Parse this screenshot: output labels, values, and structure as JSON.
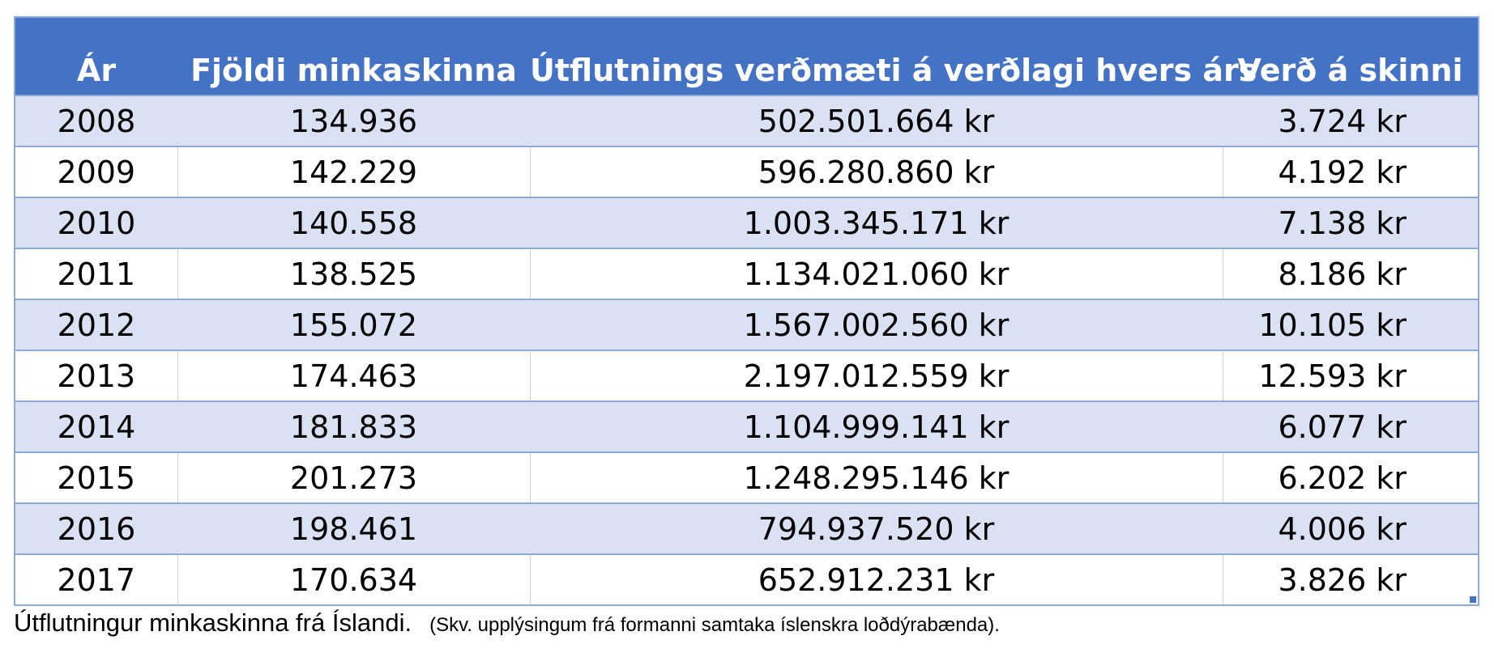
{
  "chart_data": {
    "type": "table",
    "columns": [
      "Ár",
      "Fjöldi minkaskinna",
      "Útflutnings verðmæti á verðlagi hvers árs",
      "Verð á skinni"
    ],
    "rows": [
      [
        "2008",
        "134.936",
        "502.501.664 kr",
        "3.724 kr"
      ],
      [
        "2009",
        "142.229",
        "596.280.860 kr",
        "4.192 kr"
      ],
      [
        "2010",
        "140.558",
        "1.003.345.171 kr",
        "7.138 kr"
      ],
      [
        "2011",
        "138.525",
        "1.134.021.060 kr",
        "8.186 kr"
      ],
      [
        "2012",
        "155.072",
        "1.567.002.560 kr",
        "10.105 kr"
      ],
      [
        "2013",
        "174.463",
        "2.197.012.559 kr",
        "12.593 kr"
      ],
      [
        "2014",
        "181.833",
        "1.104.999.141 kr",
        "6.077 kr"
      ],
      [
        "2015",
        "201.273",
        "1.248.295.146 kr",
        "6.202 kr"
      ],
      [
        "2016",
        "198.461",
        "794.937.520 kr",
        "4.006 kr"
      ],
      [
        "2017",
        "170.634",
        "652.912.231 kr",
        "3.826 kr"
      ]
    ],
    "header_color": "#4472c4",
    "header_text_color": "#ffffff",
    "band_color": "#d9e1f2",
    "border_color": "#8eaadb"
  },
  "caption": {
    "main": "Útflutningur minkaskinna frá Íslandi.",
    "source": "(Skv. upplýsingum frá formanni samtaka íslenskra loðdýrabænda)."
  }
}
